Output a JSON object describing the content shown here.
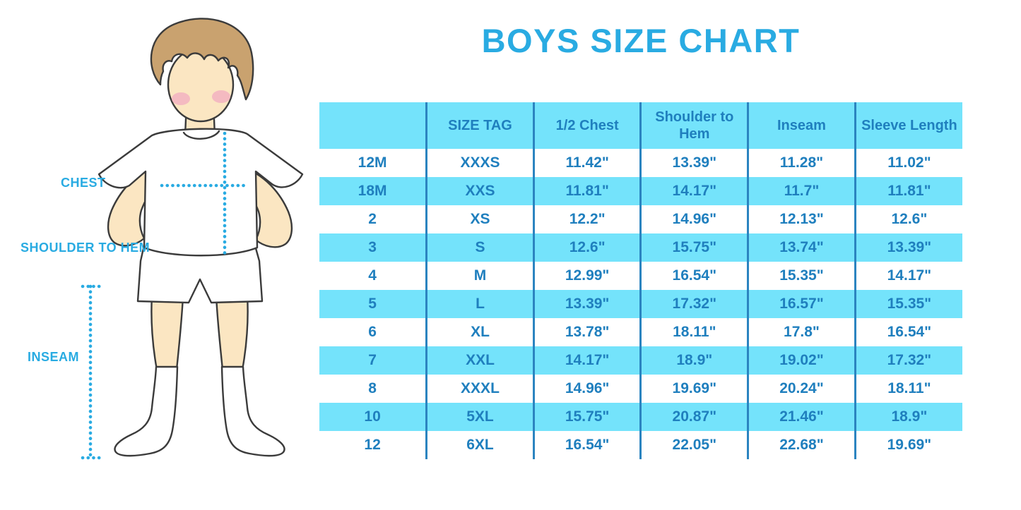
{
  "title": "BOYS SIZE CHART",
  "colors": {
    "accent_blue": "#29ABE2",
    "table_text_blue": "#1F7FBE",
    "stripe_cyan": "#74E3FB",
    "divider_blue": "#2B84C0",
    "skin": "#FBE6C2",
    "hair": "#C9A26F",
    "cheek": "#F2AFC0"
  },
  "figure": {
    "labels": {
      "chest": "CHEST",
      "shoulder_to_hem": "SHOULDER TO HEM",
      "inseam": "INSEAM"
    }
  },
  "chart_data": {
    "type": "table",
    "title": "BOYS SIZE CHART",
    "columns": [
      "",
      "SIZE TAG",
      "1/2 Chest",
      "Shoulder to Hem",
      "Inseam",
      "Sleeve Length"
    ],
    "rows": [
      [
        "12M",
        "XXXS",
        "11.42\"",
        "13.39\"",
        "11.28\"",
        "11.02\""
      ],
      [
        "18M",
        "XXS",
        "11.81\"",
        "14.17\"",
        "11.7\"",
        "11.81\""
      ],
      [
        "2",
        "XS",
        "12.2\"",
        "14.96\"",
        "12.13\"",
        "12.6\""
      ],
      [
        "3",
        "S",
        "12.6\"",
        "15.75\"",
        "13.74\"",
        "13.39\""
      ],
      [
        "4",
        "M",
        "12.99\"",
        "16.54\"",
        "15.35\"",
        "14.17\""
      ],
      [
        "5",
        "L",
        "13.39\"",
        "17.32\"",
        "16.57\"",
        "15.35\""
      ],
      [
        "6",
        "XL",
        "13.78\"",
        "18.11\"",
        "17.8\"",
        "16.54\""
      ],
      [
        "7",
        "XXL",
        "14.17\"",
        "18.9\"",
        "19.02\"",
        "17.32\""
      ],
      [
        "8",
        "XXXL",
        "14.96\"",
        "19.69\"",
        "20.24\"",
        "18.11\""
      ],
      [
        "10",
        "5XL",
        "15.75\"",
        "20.87\"",
        "21.46\"",
        "18.9\""
      ],
      [
        "12",
        "6XL",
        "16.54\"",
        "22.05\"",
        "22.68\"",
        "19.69\""
      ]
    ],
    "layout": {
      "striped": true,
      "stripe_pattern": "header and every second data row cyan, others white",
      "column_dividers": true,
      "outer_border": false
    },
    "units": "inches"
  }
}
